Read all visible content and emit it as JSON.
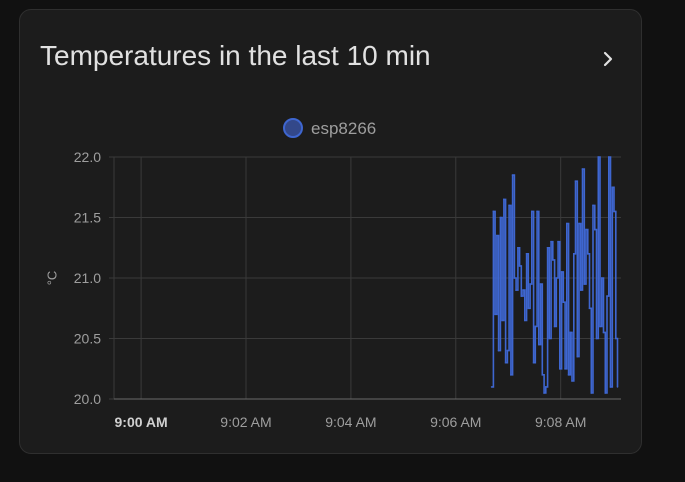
{
  "card": {
    "title": "Temperatures in the last 10 min",
    "more_icon": "chevron-right-icon"
  },
  "colors": {
    "background": "#111111",
    "card": "#1c1c1c",
    "series": "#3e66d0",
    "grid": "#3a3a3a",
    "text": "#9e9e9e"
  },
  "chart_data": {
    "type": "line",
    "line_shape": "step",
    "title": "",
    "xlabel": "",
    "ylabel": "°C",
    "ylim": [
      20.0,
      22.0
    ],
    "xlim": [
      "8:59:29",
      "9:09:09"
    ],
    "y_ticks": [
      "20.0",
      "20.5",
      "21.0",
      "21.5",
      "22.0"
    ],
    "x_ticks": [
      {
        "label": "9:00 AM",
        "time": "9:00:00",
        "bold": true
      },
      {
        "label": "9:02 AM",
        "time": "9:02:00",
        "bold": false
      },
      {
        "label": "9:04 AM",
        "time": "9:04:00",
        "bold": false
      },
      {
        "label": "9:06 AM",
        "time": "9:06:00",
        "bold": false
      },
      {
        "label": "9:08 AM",
        "time": "9:08:00",
        "bold": false
      }
    ],
    "grid": true,
    "legend_position": "top-center",
    "series": [
      {
        "name": "esp8266",
        "x": [
          "9:06:41",
          "9:06:43",
          "9:06:45",
          "9:06:47",
          "9:06:49",
          "9:06:51",
          "9:06:53",
          "9:06:55",
          "9:06:57",
          "9:06:59",
          "9:07:01",
          "9:07:03",
          "9:07:05",
          "9:07:07",
          "9:07:09",
          "9:07:11",
          "9:07:13",
          "9:07:15",
          "9:07:17",
          "9:07:19",
          "9:07:21",
          "9:07:23",
          "9:07:25",
          "9:07:27",
          "9:07:29",
          "9:07:31",
          "9:07:33",
          "9:07:35",
          "9:07:37",
          "9:07:39",
          "9:07:41",
          "9:07:43",
          "9:07:45",
          "9:07:47",
          "9:07:49",
          "9:07:51",
          "9:07:53",
          "9:07:55",
          "9:07:57",
          "9:07:59",
          "9:08:01",
          "9:08:03",
          "9:08:05",
          "9:08:07",
          "9:08:09",
          "9:08:11",
          "9:08:13",
          "9:08:15",
          "9:08:17",
          "9:08:19",
          "9:08:21",
          "9:08:23",
          "9:08:25",
          "9:08:27",
          "9:08:29",
          "9:08:31",
          "9:08:33",
          "9:08:35",
          "9:08:37",
          "9:08:39",
          "9:08:41",
          "9:08:43",
          "9:08:45",
          "9:08:47",
          "9:08:49",
          "9:08:51",
          "9:08:53",
          "9:08:55",
          "9:08:57",
          "9:08:59",
          "9:09:01",
          "9:09:03",
          "9:09:05"
        ],
        "values": [
          20.1,
          21.55,
          20.7,
          21.35,
          20.4,
          21.5,
          20.65,
          21.65,
          20.3,
          20.4,
          21.6,
          20.2,
          21.85,
          21.0,
          20.9,
          21.25,
          21.1,
          20.85,
          20.9,
          20.65,
          21.2,
          20.75,
          20.95,
          21.55,
          20.3,
          20.6,
          21.55,
          20.45,
          20.95,
          20.2,
          20.05,
          20.1,
          21.25,
          20.5,
          21.3,
          21.15,
          20.6,
          21.0,
          21.3,
          20.25,
          21.05,
          20.8,
          20.25,
          21.45,
          20.2,
          20.55,
          20.15,
          21.2,
          21.8,
          20.35,
          21.45,
          20.9,
          21.9,
          20.95,
          21.4,
          21.2,
          20.75,
          20.05,
          21.6,
          21.4,
          20.5,
          22.0,
          20.6,
          21.0,
          20.55,
          20.05,
          20.85,
          22.0,
          20.1,
          21.75,
          21.55,
          20.5,
          20.1
        ]
      }
    ]
  }
}
